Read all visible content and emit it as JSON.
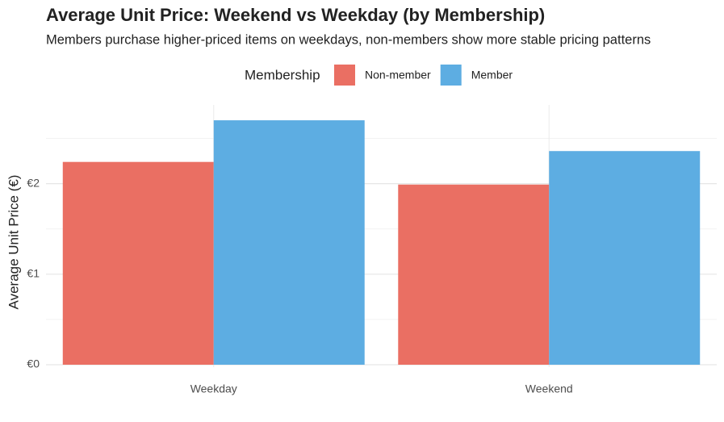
{
  "chart_data": {
    "type": "bar",
    "title": "Average Unit Price: Weekend vs Weekday (by Membership)",
    "subtitle": "Members purchase higher-priced items on weekdays, non-members show more stable pricing patterns",
    "y_label": "Average Unit Price (€)",
    "legend_title": "Membership",
    "categories": [
      "Weekday",
      "Weekend"
    ],
    "series": [
      {
        "name": "Non-member",
        "color": "#ea6f63",
        "values": [
          2.24,
          1.99
        ]
      },
      {
        "name": "Member",
        "color": "#5dade2",
        "values": [
          2.7,
          2.36
        ]
      }
    ],
    "ylim": [
      0,
      2.87
    ],
    "yticks": [
      {
        "value": 0,
        "label": "€0"
      },
      {
        "value": 1,
        "label": "€1"
      },
      {
        "value": 2,
        "label": "€2"
      }
    ],
    "y_minor_ticks": [
      0.5,
      1.5,
      2.5
    ],
    "grid": true
  }
}
